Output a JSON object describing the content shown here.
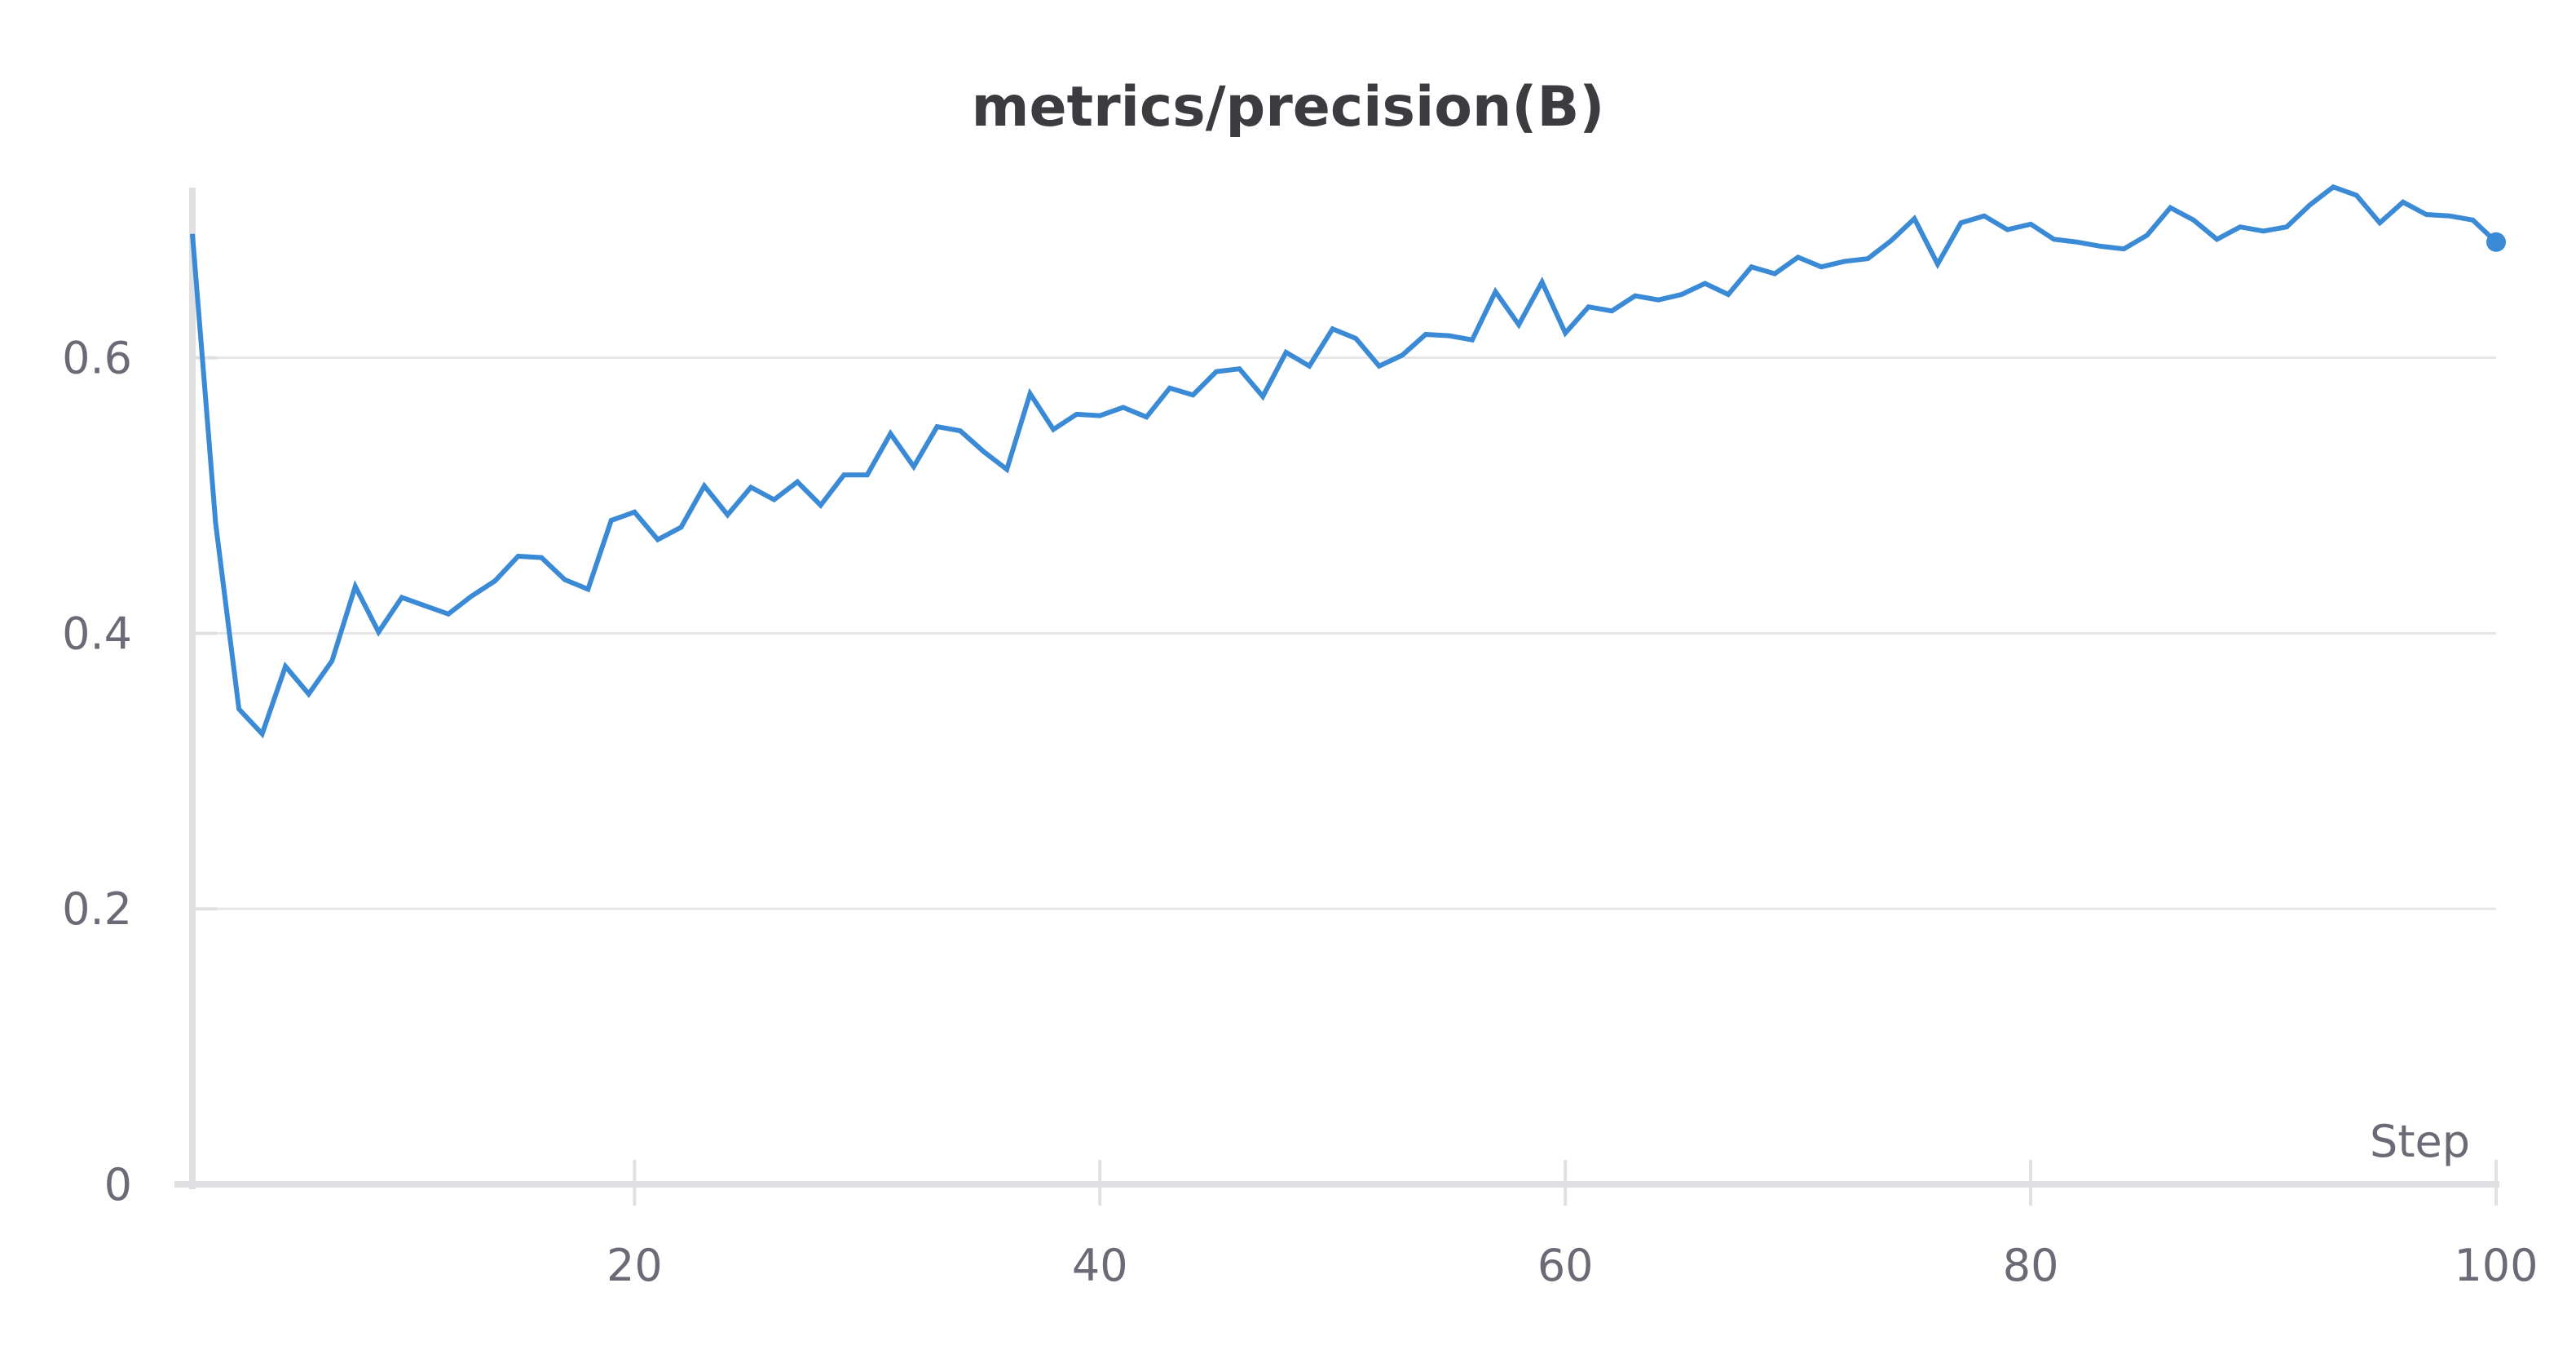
{
  "chart_data": {
    "type": "line",
    "title": "metrics/precision(B)",
    "xlabel": "Step",
    "ylabel": "",
    "xlim": [
      1,
      100
    ],
    "ylim": [
      0,
      0.72
    ],
    "x_ticks": [
      20,
      40,
      60,
      80,
      100
    ],
    "x_tick_labels": [
      "20",
      "40",
      "60",
      "80",
      "100"
    ],
    "y_ticks": [
      0,
      0.2,
      0.4,
      0.6
    ],
    "y_tick_labels": [
      "0",
      "0.2",
      "0.4",
      "0.6"
    ],
    "grid": true,
    "line_color": "#3a8ad6",
    "series": [
      {
        "x": [
          1,
          2,
          3,
          4,
          5,
          6,
          7,
          8,
          9,
          10,
          11,
          12,
          13,
          14,
          15,
          16,
          17,
          18,
          19,
          20,
          21,
          22,
          23,
          24,
          25,
          26,
          27,
          28,
          29,
          30,
          31,
          32,
          33,
          34,
          35,
          36,
          37,
          38,
          39,
          40,
          41,
          42,
          43,
          44,
          45,
          46,
          47,
          48,
          49,
          50,
          51,
          52,
          53,
          54,
          55,
          56,
          57,
          58,
          59,
          60,
          61,
          62,
          63,
          64,
          65,
          66,
          67,
          68,
          69,
          70,
          71,
          72,
          73,
          74,
          75,
          76,
          77,
          78,
          79,
          80,
          81,
          82,
          83,
          84,
          85,
          86,
          87,
          88,
          89,
          90,
          91,
          92,
          93,
          94,
          95,
          96,
          97,
          98,
          99,
          100
        ],
        "values": [
          0.69,
          0.48,
          0.345,
          0.327,
          0.376,
          0.356,
          0.38,
          0.434,
          0.401,
          0.426,
          0.42,
          0.414,
          0.427,
          0.438,
          0.456,
          0.455,
          0.439,
          0.432,
          0.482,
          0.488,
          0.468,
          0.477,
          0.507,
          0.486,
          0.506,
          0.497,
          0.51,
          0.493,
          0.515,
          0.515,
          0.545,
          0.521,
          0.55,
          0.547,
          0.532,
          0.519,
          0.574,
          0.548,
          0.559,
          0.558,
          0.564,
          0.557,
          0.578,
          0.573,
          0.59,
          0.592,
          0.572,
          0.604,
          0.594,
          0.621,
          0.614,
          0.594,
          0.602,
          0.617,
          0.616,
          0.613,
          0.648,
          0.624,
          0.655,
          0.618,
          0.637,
          0.634,
          0.645,
          0.642,
          0.646,
          0.654,
          0.646,
          0.666,
          0.661,
          0.673,
          0.666,
          0.67,
          0.672,
          0.685,
          0.701,
          0.668,
          0.698,
          0.703,
          0.693,
          0.697,
          0.686,
          0.684,
          0.681,
          0.679,
          0.689,
          0.709,
          0.7,
          0.686,
          0.695,
          0.692,
          0.695,
          0.711,
          0.724,
          0.718,
          0.698,
          0.713,
          0.704,
          0.703,
          0.7,
          0.684
        ]
      }
    ]
  }
}
